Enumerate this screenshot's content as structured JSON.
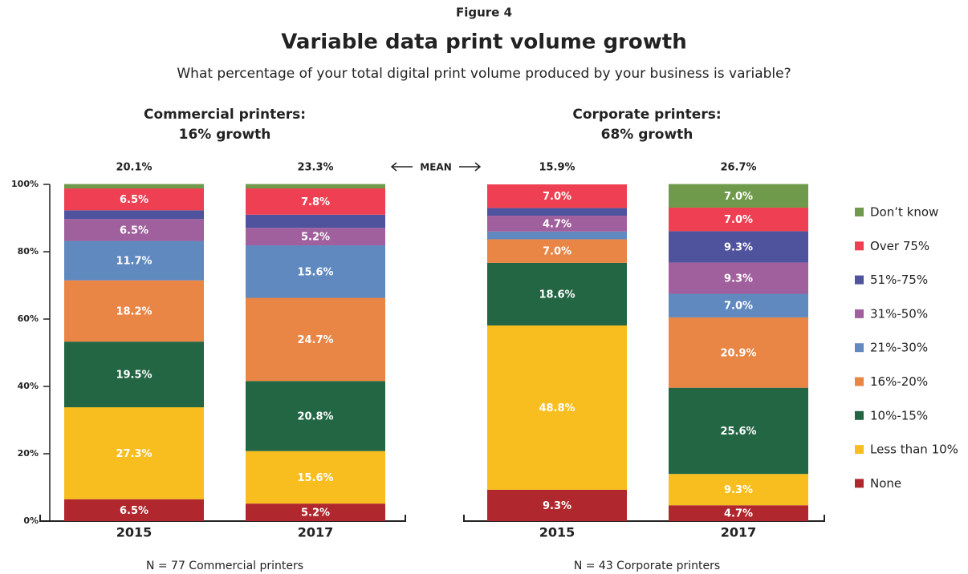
{
  "chart_data": {
    "type": "bar",
    "stacked": true,
    "figure_label": "Figure 4",
    "title": "Variable data print volume growth",
    "subtitle": "What percentage of your total digital print volume produced by your business is variable?",
    "panels": [
      {
        "title": [
          "Commercial printers:",
          "16% growth"
        ],
        "note": "N = 77 Commercial printers"
      },
      {
        "title": [
          "Corporate printers:",
          "68% growth"
        ],
        "note": "N = 43 Corporate printers"
      }
    ],
    "categories": [
      "2015",
      "2017",
      "2015",
      "2017"
    ],
    "mean_label": "MEAN",
    "means": [
      20.1,
      23.3,
      15.9,
      26.7
    ],
    "mean_labels": [
      "20.1%",
      "23.3%",
      "15.9%",
      "26.7%"
    ],
    "ylim": [
      0,
      100
    ],
    "yticks": [
      {
        "value": 0,
        "label": "0%"
      },
      {
        "value": 20,
        "label": "20%"
      },
      {
        "value": 40,
        "label": "40%"
      },
      {
        "value": 60,
        "label": "60%"
      },
      {
        "value": 80,
        "label": "80%"
      },
      {
        "value": 100,
        "label": "100%"
      }
    ],
    "series": [
      {
        "name": "None",
        "color": "#b0282e",
        "values": [
          6.5,
          5.2,
          9.3,
          4.7
        ],
        "value_labels": [
          "6.5%",
          "5.2%",
          "9.3%",
          "4.7%"
        ]
      },
      {
        "name": "Less than 10%",
        "color": "#f8be1f",
        "values": [
          27.3,
          15.6,
          48.8,
          9.3
        ],
        "value_labels": [
          "27.3%",
          "15.6%",
          "48.8%",
          "9.3%"
        ]
      },
      {
        "name": "10%-15%",
        "color": "#226644",
        "values": [
          19.5,
          20.8,
          18.6,
          25.6
        ],
        "value_labels": [
          "19.5%",
          "20.8%",
          "18.6%",
          "25.6%"
        ]
      },
      {
        "name": "16%-20%",
        "color": "#e98545",
        "values": [
          18.2,
          24.7,
          7.0,
          20.9
        ],
        "value_labels": [
          "18.2%",
          "24.7%",
          "7.0%",
          "20.9%"
        ]
      },
      {
        "name": "21%-30%",
        "color": "#5f89bf",
        "values": [
          11.7,
          15.6,
          2.3,
          7.0
        ],
        "value_labels": [
          "11.7%",
          "15.6%",
          null,
          "7.0%"
        ]
      },
      {
        "name": "31%-50%",
        "color": "#a0609d",
        "values": [
          6.5,
          5.2,
          4.7,
          9.3
        ],
        "value_labels": [
          "6.5%",
          "5.2%",
          "4.7%",
          "9.3%"
        ]
      },
      {
        "name": "51%-75%",
        "color": "#4f529c",
        "values": [
          2.6,
          3.9,
          2.3,
          9.3
        ],
        "value_labels": [
          null,
          null,
          null,
          "9.3%"
        ]
      },
      {
        "name": "Over 75%",
        "color": "#ee4052",
        "values": [
          6.5,
          7.8,
          7.0,
          7.0
        ],
        "value_labels": [
          "6.5%",
          "7.8%",
          "7.0%",
          "7.0%"
        ]
      },
      {
        "name": "Don’t know",
        "color": "#6f9a4b",
        "values": [
          1.3,
          1.3,
          0,
          7.0
        ],
        "value_labels": [
          null,
          null,
          null,
          "7.0%"
        ]
      }
    ]
  }
}
